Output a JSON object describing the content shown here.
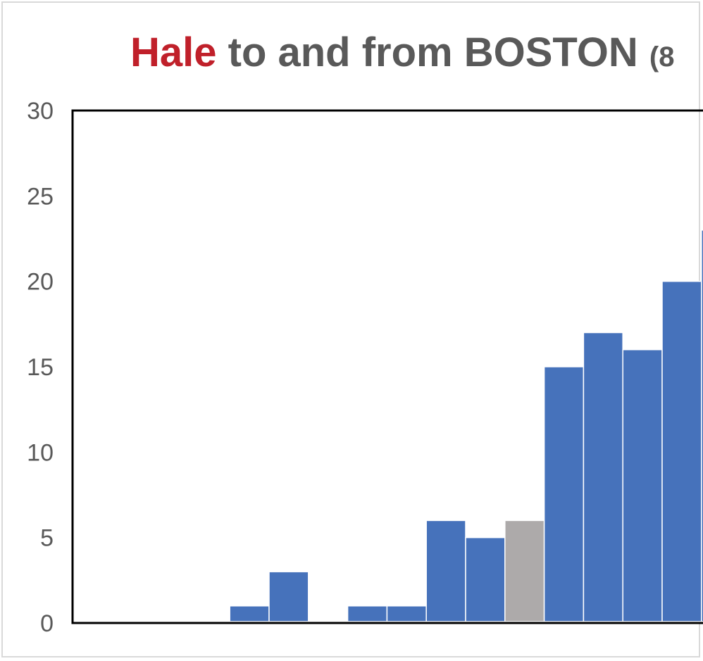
{
  "chart_data": {
    "type": "bar",
    "title": {
      "highlight": "Hale",
      "rest": " to and from BOSTON ",
      "suffix": "(8"
    },
    "xlabel": "",
    "ylabel": "",
    "ylim": [
      0,
      30
    ],
    "yticks": [
      "0",
      "5",
      "10",
      "15",
      "20",
      "25",
      "30"
    ],
    "grid": false,
    "values": [
      0,
      0,
      0,
      0,
      1,
      3,
      0,
      1,
      1,
      6,
      5,
      6,
      15,
      17,
      16,
      20,
      23
    ],
    "highlight_index": 11,
    "colors": {
      "bar": "#4672bb",
      "highlight_bar": "#adaaaa",
      "title_highlight": "#c0202a",
      "title_text": "#595959",
      "axis": "#000000"
    }
  }
}
